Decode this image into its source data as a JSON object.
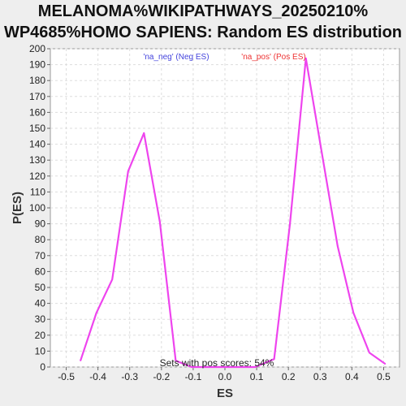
{
  "title_line1": "MELANOMA%WIKIPATHWAYS_20250210%",
  "title_line2": "WP4685%HOMO SAPIENS: Random ES distribution",
  "chart_data": {
    "type": "line",
    "xlabel": "ES",
    "ylabel": "P(ES)",
    "xlim": [
      -0.55,
      0.55
    ],
    "ylim": [
      0,
      200
    ],
    "x_ticks": [
      "-0.5",
      "-0.4",
      "-0.3",
      "-0.2",
      "-0.1",
      "0.0",
      "0.1",
      "0.2",
      "0.3",
      "0.4",
      "0.5"
    ],
    "y_ticks": [
      "0",
      "10",
      "20",
      "30",
      "40",
      "50",
      "60",
      "70",
      "80",
      "90",
      "100",
      "110",
      "120",
      "130",
      "140",
      "150",
      "160",
      "170",
      "180",
      "190",
      "200"
    ],
    "grid": true,
    "legend": [
      {
        "label": "'na_neg' (Neg ES)",
        "color": "#4444dd"
      },
      {
        "label": "'na_pos' (Pos ES)",
        "color": "#ee3333"
      }
    ],
    "annotation": "Sets with pos scores: 54%",
    "line_color": "#ee44ee",
    "series": [
      {
        "x": [
          -0.455,
          -0.405,
          -0.355,
          -0.305,
          -0.255,
          -0.205,
          -0.155,
          -0.105,
          -0.055,
          -0.005,
          0.045,
          0.095,
          0.155,
          0.205,
          0.255,
          0.305,
          0.355,
          0.405,
          0.455,
          0.505
        ],
        "y": [
          4,
          34,
          55,
          123,
          147,
          91,
          4,
          0,
          0,
          0,
          0,
          0,
          5,
          90,
          194,
          135,
          76,
          34,
          9,
          2
        ]
      }
    ]
  }
}
